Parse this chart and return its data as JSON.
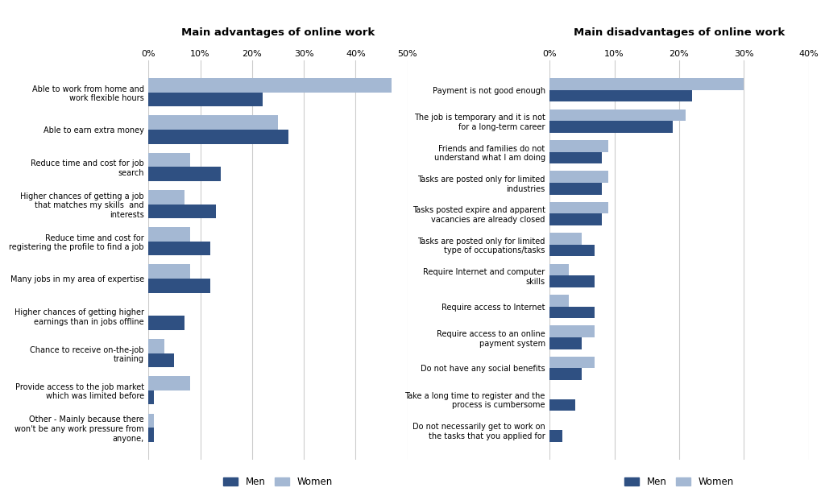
{
  "adv_title": "Main advantages of online work",
  "disadv_title": "Main disadvantages of online work",
  "adv_categories": [
    "Able to work from home and\nwork flexible hours",
    "Able to earn extra money",
    "Reduce time and cost for job\nsearch",
    "Higher chances of getting a job\nthat matches my skills  and\ninterests",
    "Reduce time and cost for\nregistering the profile to find a job",
    "Many jobs in my area of expertise",
    "Higher chances of getting higher\nearnings than in jobs offline",
    "Chance to receive on-the-job\ntraining",
    "Provide access to the job market\nwhich was limited before",
    "Other - Mainly because there\nwon't be any work pressure from\nanyone,"
  ],
  "adv_men": [
    22,
    27,
    14,
    13,
    12,
    12,
    7,
    5,
    1,
    1
  ],
  "adv_women": [
    47,
    25,
    8,
    7,
    8,
    8,
    0,
    3,
    8,
    1
  ],
  "disadv_categories": [
    "Payment is not good enough",
    "The job is temporary and it is not\nfor a long-term career",
    "Friends and families do not\nunderstand what I am doing",
    "Tasks are posted only for limited\nindustries",
    "Tasks posted expire and apparent\nvacancies are already closed",
    "Tasks are posted only for limited\ntype of occupations/tasks",
    "Require Internet and computer\nskills",
    "Require access to Internet",
    "Require access to an online\npayment system",
    "Do not have any social benefits",
    "Take a long time to register and the\nprocess is cumbersome",
    "Do not necessarily get to work on\nthe tasks that you applied for"
  ],
  "disadv_men": [
    22,
    19,
    8,
    8,
    8,
    7,
    7,
    7,
    5,
    5,
    4,
    2
  ],
  "disadv_women": [
    30,
    21,
    9,
    9,
    9,
    5,
    3,
    3,
    7,
    7,
    0,
    0
  ],
  "men_color": "#2F5082",
  "women_color": "#A4B8D3",
  "adv_xlim": 50,
  "disadv_xlim": 40,
  "adv_xticks": [
    0,
    10,
    20,
    30,
    40,
    50
  ],
  "disadv_xticks": [
    0,
    10,
    20,
    30,
    40
  ],
  "bg_color": "#FFFFFF",
  "grid_color": "#CCCCCC"
}
